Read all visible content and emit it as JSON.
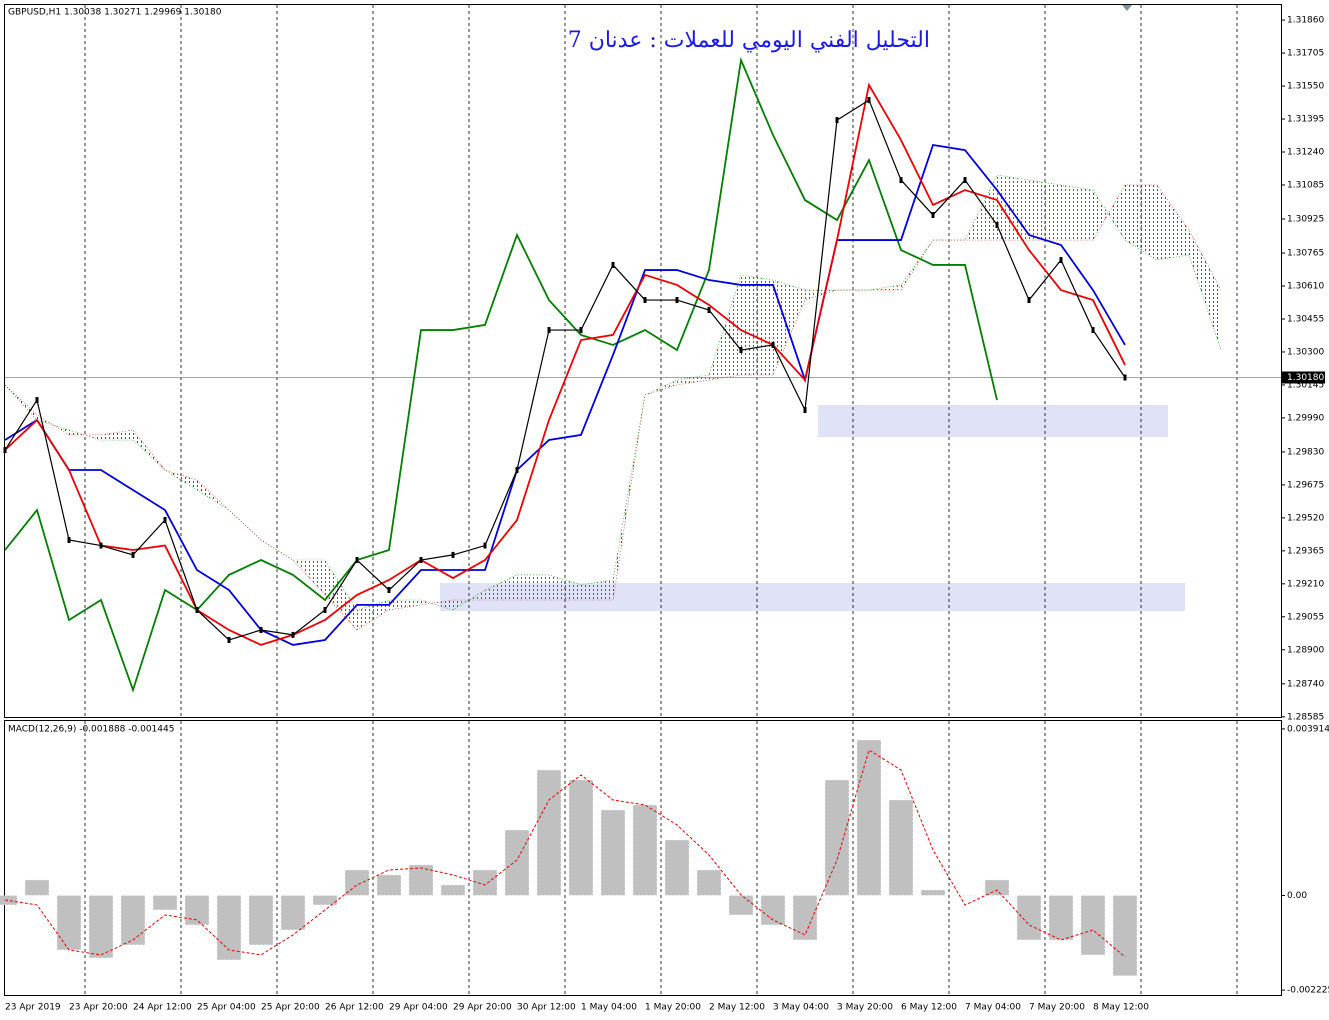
{
  "chart_data": [
    {
      "type": "line",
      "symbol_info": "GBPUSD,H1  1.30038 1.30271 1.29969 1.30180",
      "title": "التحليل الفني اليومي للعملات : عدنان 7",
      "categories": [
        "23 Apr 2019",
        null,
        "23 Apr 20:00",
        null,
        "24 Apr 12:00",
        null,
        "25 Apr 04:00",
        null,
        "25 Apr 20:00",
        null,
        "26 Apr 12:00",
        null,
        "29 Apr 04:00",
        null,
        "29 Apr 20:00",
        null,
        "30 Apr 12:00",
        null,
        "1 May 04:00",
        null,
        "1 May 20:00",
        null,
        "2 May 12:00",
        null,
        "3 May 04:00",
        null,
        "3 May 20:00",
        null,
        "6 May 12:00",
        null,
        "7 May 04:00",
        null,
        "7 May 20:00",
        null,
        "8 May 12:00",
        null,
        null,
        null,
        null
      ],
      "ylim": [
        1.28584,
        1.31931
      ],
      "yticks": [
        {
          "value": 1.3186,
          "label": "1.31860"
        },
        1.31705,
        {
          "value": 1.3155,
          "label": "1.31550"
        },
        1.31395,
        {
          "value": 1.3124,
          "label": "1.31240"
        },
        1.31085,
        1.30925,
        1.30765,
        {
          "value": 1.3061,
          "label": "1.30610"
        },
        1.30455,
        {
          "value": 1.303,
          "label": "1.30300"
        },
        1.30145,
        {
          "value": 1.2999,
          "label": "1.29990"
        },
        {
          "value": 1.2983,
          "label": "1.29830"
        },
        1.29675,
        {
          "value": 1.2952,
          "label": "1.29520"
        },
        1.29365,
        {
          "value": 1.2921,
          "label": "1.29210"
        },
        1.29055,
        {
          "value": 1.289,
          "label": "1.28900"
        },
        {
          "value": 1.2874,
          "label": "1.28740"
        },
        1.28585
      ],
      "last_price": {
        "value": 1.3018,
        "label": "1.30180"
      },
      "cloud": {
        "color_up": "#00a000",
        "color_down": "#c02020",
        "a_values": [
          1.30145,
          1.2998,
          1.29933,
          1.29886,
          1.29886,
          1.29745,
          1.29651,
          1.29557,
          1.29416,
          1.29322,
          1.29322,
          1.29087,
          1.29134,
          1.29134,
          1.29087,
          1.29181,
          1.29252,
          1.29252,
          1.29205,
          1.29228,
          1.30098,
          1.30168,
          1.30192,
          1.30662,
          1.30638,
          1.30591,
          1.30591,
          1.30591,
          1.30615,
          1.30826,
          1.30826,
          1.31132,
          1.31108,
          1.31085,
          1.31061,
          1.30826,
          1.30732,
          1.30756,
          1.30309
        ],
        "b_values": [
          1.30145,
          1.30004,
          1.2991,
          1.2991,
          1.29933,
          1.29745,
          1.29698,
          1.29557,
          1.29416,
          1.29322,
          1.29158,
          1.28993,
          1.29087,
          1.29111,
          1.29134,
          1.29134,
          1.29134,
          1.29134,
          1.29134,
          1.29134,
          1.30098,
          1.30145,
          1.30168,
          1.30192,
          1.30192,
          1.30544,
          1.30591,
          1.30591,
          1.30591,
          1.30826,
          1.30826,
          1.30826,
          1.30826,
          1.30826,
          1.30826,
          1.31085,
          1.31085,
          1.30873,
          1.30591
        ]
      },
      "series": [
        {
          "color": "#008000",
          "values": [
            1.29369,
            1.29557,
            1.2904,
            1.29134,
            1.28711,
            1.29181,
            1.29087,
            1.29252,
            1.29322,
            1.29252,
            1.29134,
            1.29322,
            1.29369,
            1.30403,
            1.30403,
            1.30427,
            1.3085,
            1.30544,
            1.3038,
            1.30333,
            1.30403,
            1.30309,
            1.30685,
            1.31672,
            1.3132,
            1.31014,
            1.3092,
            1.31202,
            1.30779,
            1.30709,
            1.30709,
            1.30074,
            null,
            null,
            null,
            null,
            null,
            null,
            null
          ]
        },
        {
          "color": "#0000dd",
          "values": [
            1.29886,
            1.2998,
            1.29745,
            1.29745,
            1.29651,
            1.29557,
            1.29275,
            1.29181,
            1.28993,
            1.28923,
            1.28946,
            1.29111,
            1.29111,
            1.29275,
            1.29275,
            1.29275,
            1.29745,
            1.29886,
            1.2991,
            1.30286,
            1.30685,
            1.30685,
            1.30638,
            1.30615,
            1.30615,
            1.30168,
            1.30826,
            1.30826,
            1.30826,
            1.31273,
            1.31249,
            1.31061,
            1.3085,
            1.30803,
            1.30591,
            1.30333,
            null,
            null,
            null
          ]
        },
        {
          "color": "#ee0000",
          "values": [
            1.29839,
            1.2998,
            1.29745,
            1.2939,
            1.29369,
            1.2939,
            1.29087,
            1.28993,
            1.28923,
            1.2897,
            1.2904,
            1.29158,
            1.29228,
            1.29322,
            1.29237,
            1.29322,
            1.2951,
            1.2998,
            1.30356,
            1.3038,
            1.30662,
            1.30615,
            1.30521,
            1.30403,
            1.30333,
            1.30168,
            1.30826,
            1.31555,
            1.31296,
            1.30991,
            1.31061,
            1.31014,
            1.30779,
            1.30591,
            1.30544,
            1.30239,
            null,
            null,
            null
          ]
        },
        {
          "color": "#000000",
          "values": [
            1.29839,
            1.30074,
            1.29416,
            1.2939,
            1.29346,
            1.2951,
            1.29087,
            1.28946,
            1.28993,
            1.2897,
            1.29087,
            1.29322,
            1.29181,
            1.29322,
            1.29346,
            1.2939,
            1.29745,
            1.30403,
            1.30403,
            1.30709,
            1.30544,
            1.30544,
            1.30497,
            1.30309,
            1.30333,
            1.30027,
            1.3139,
            1.31484,
            1.31108,
            1.30944,
            1.31108,
            1.30897,
            1.30544,
            1.30732,
            1.30403,
            1.3018,
            null,
            null,
            null
          ]
        }
      ]
    },
    {
      "type": "bar",
      "label": "MACD(12,26,9) -0.001888 -0.001445",
      "ylim": [
        -0.00234,
        0.0041
      ],
      "yticks": [
        0.003914,
        {
          "value": 0,
          "label": "0.00"
        },
        -0.002225
      ],
      "series": [
        {
          "color": "#c0c0c0",
          "values": [
            -0.000223,
            0.000364,
            -0.001281,
            -0.001469,
            -0.001163,
            -0.000341,
            -0.000693,
            -0.001516,
            -0.001163,
            -0.000811,
            -0.000223,
            0.000599,
            0.000482,
            0.000717,
            0.000247,
            0.000599,
            0.001539,
            0.002949,
            0.002714,
            0.002009,
            0.002127,
            0.001304,
            0.000599,
            -0.000458,
            -0.000693,
            -0.001046,
            0.002714,
            0.003654,
            0.002244,
            0.000129,
            1.2e-05,
            0.000364,
            -0.001046,
            -0.001046,
            -0.001398,
            -0.001888
          ]
        },
        {
          "color": "#ee0000",
          "type": "line",
          "values": [
            -0.000106,
            -0.000223,
            -0.001281,
            -0.001398,
            -0.001046,
            -0.000458,
            -0.000576,
            -0.001281,
            -0.001398,
            -0.000928,
            -0.000341,
            0.000247,
            0.000599,
            0.000646,
            0.000482,
            0.000247,
            0.000834,
            0.002244,
            0.002832,
            0.002244,
            0.002127,
            0.001657,
            0.000952,
            1.2e-05,
            -0.000576,
            -0.000928,
            0.000834,
            0.003419,
            0.002949,
            0.001069,
            -0.000223,
            0.000129,
            -0.000693,
            -0.001046,
            -0.000811,
            -0.001445
          ]
        }
      ]
    }
  ]
}
